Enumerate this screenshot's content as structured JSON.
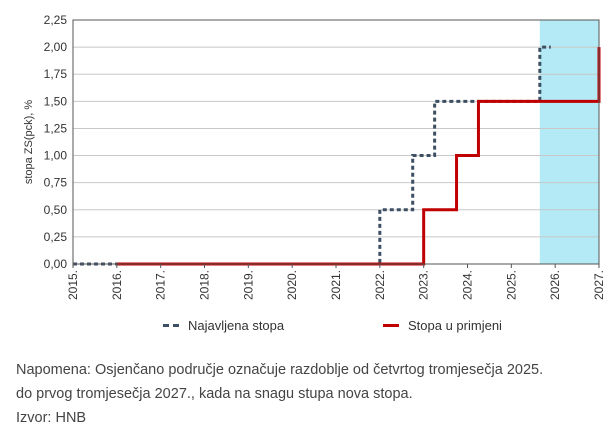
{
  "chart_data": {
    "type": "line",
    "title": "",
    "ylabel": "stopa ZS(pck), %",
    "xlabel": "",
    "ylim": [
      0,
      2.25
    ],
    "xlim": [
      2015,
      2027
    ],
    "y_ticks": [
      "0,00",
      "0,25",
      "0,50",
      "0,75",
      "1,00",
      "1,25",
      "1,50",
      "1,75",
      "2,00",
      "2,25"
    ],
    "x_ticks": [
      "2015.",
      "2016.",
      "2017.",
      "2018.",
      "2019.",
      "2020.",
      "2021.",
      "2022.",
      "2023.",
      "2024.",
      "2025.",
      "2026.",
      "2027."
    ],
    "shaded_region": {
      "from": 2025.65,
      "to": 2027,
      "color": "#b3eaf5"
    },
    "series": [
      {
        "name": "Najavljena stopa",
        "style": "dashed",
        "color": "#3d4f63",
        "points": [
          [
            2015,
            0
          ],
          [
            2022,
            0
          ],
          [
            2022,
            0.5
          ],
          [
            2022.75,
            0.5
          ],
          [
            2022.75,
            1.0
          ],
          [
            2023.25,
            1.0
          ],
          [
            2023.25,
            1.5
          ],
          [
            2025.65,
            1.5
          ],
          [
            2025.65,
            2.0
          ],
          [
            2025.9,
            2.0
          ]
        ]
      },
      {
        "name": "Stopa u primjeni",
        "style": "solid",
        "color": "#c00000",
        "points": [
          [
            2016,
            0
          ],
          [
            2023,
            0
          ],
          [
            2023,
            0.5
          ],
          [
            2023.75,
            0.5
          ],
          [
            2023.75,
            1.0
          ],
          [
            2024.25,
            1.0
          ],
          [
            2024.25,
            1.5
          ],
          [
            2027,
            1.5
          ],
          [
            2027,
            2.0
          ]
        ]
      }
    ]
  },
  "legend": {
    "announced": "Najavljena stopa",
    "applied": "Stopa u primjeni"
  },
  "note": {
    "line1": "Napomena: Osjenčano područje označuje razdoblje od četvrtog tromjesečja 2025.",
    "line2": "do prvog tromjesečja 2027., kada na snagu stupa nova stopa.",
    "source": "Izvor: HNB"
  }
}
